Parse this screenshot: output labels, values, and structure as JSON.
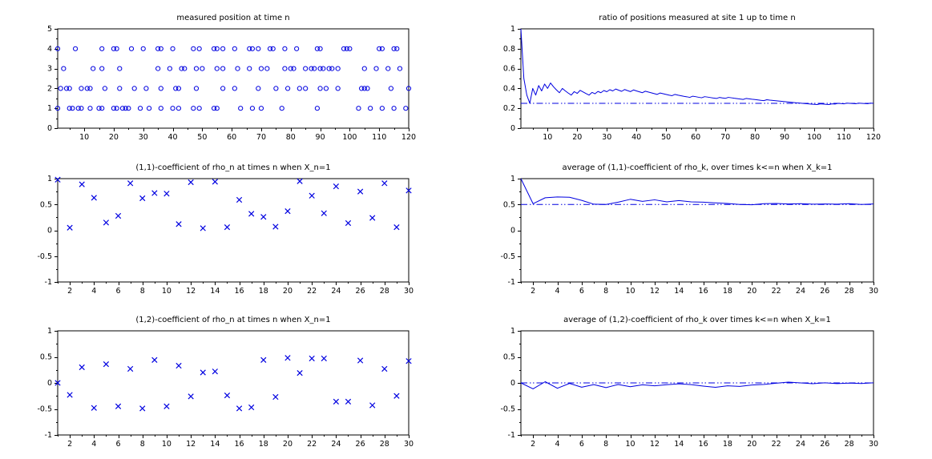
{
  "colors": {
    "series_blue": "#0000e0",
    "refline_blue": "#0000e0",
    "axis_black": "#000000",
    "background": "#ffffff",
    "text": "#000000"
  },
  "chart_data": [
    {
      "id": "measured-position",
      "type": "scatter",
      "marker": "circle",
      "title": "measured position at time n",
      "xlabel": "",
      "ylabel": "",
      "xlim": [
        1,
        120
      ],
      "ylim": [
        0,
        5
      ],
      "xticks": [
        10,
        20,
        30,
        40,
        50,
        60,
        70,
        80,
        90,
        100,
        110,
        120
      ],
      "xtick_labels": [
        "10",
        "20",
        "30",
        "40",
        "50",
        "60",
        "70",
        "80",
        "90",
        "100",
        "110",
        "120"
      ],
      "yticks": [
        0,
        1,
        2,
        3,
        4,
        5
      ],
      "ytick_labels": [
        "0",
        "1",
        "2",
        "3",
        "4",
        "5"
      ],
      "grid": false,
      "series": [
        {
          "name": "position 1",
          "y_const": 1,
          "x": [
            1,
            5,
            6,
            8,
            9,
            12,
            15,
            16,
            20,
            21,
            23,
            24,
            25,
            29,
            32,
            36,
            40,
            42,
            47,
            49,
            54,
            55,
            63,
            67,
            70,
            77,
            89,
            103,
            107,
            111,
            115,
            119
          ]
        },
        {
          "name": "position 2",
          "y_const": 2,
          "x": [
            2,
            4,
            5,
            9,
            11,
            12,
            17,
            22,
            27,
            31,
            36,
            41,
            42,
            48,
            57,
            61,
            69,
            75,
            79,
            83,
            85,
            90,
            92,
            96,
            104,
            105,
            106,
            114,
            120
          ]
        },
        {
          "name": "position 3",
          "y_const": 3,
          "x": [
            3,
            13,
            16,
            22,
            35,
            39,
            43,
            44,
            48,
            50,
            55,
            57,
            62,
            66,
            70,
            72,
            78,
            80,
            81,
            85,
            87,
            88,
            90,
            91,
            93,
            94,
            96,
            105,
            109,
            113,
            117
          ]
        },
        {
          "name": "position 4",
          "y_const": 4,
          "x": [
            1,
            7,
            16,
            20,
            21,
            26,
            30,
            35,
            36,
            40,
            47,
            49,
            54,
            55,
            57,
            61,
            66,
            67,
            69,
            73,
            74,
            78,
            82,
            89,
            90,
            98,
            99,
            100,
            110,
            111,
            115,
            116
          ]
        }
      ]
    },
    {
      "id": "ratio-site-1",
      "type": "line",
      "title": "ratio of positions measured at site 1 up to time n",
      "xlabel": "",
      "ylabel": "",
      "xlim": [
        1,
        120
      ],
      "ylim": [
        0,
        1
      ],
      "xticks": [
        10,
        20,
        30,
        40,
        50,
        60,
        70,
        80,
        90,
        100,
        110,
        120
      ],
      "xtick_labels": [
        "10",
        "20",
        "30",
        "40",
        "50",
        "60",
        "70",
        "80",
        "90",
        "100",
        "110",
        "120"
      ],
      "yticks": [
        0,
        0.2,
        0.4,
        0.6,
        0.8,
        1
      ],
      "ytick_labels": [
        "0",
        "0.2",
        "0.4",
        "0.6",
        "0.8",
        "1"
      ],
      "grid": false,
      "x_start": 1,
      "refline": 0.25,
      "y": [
        1.0,
        0.5,
        0.333,
        0.25,
        0.4,
        0.333,
        0.429,
        0.375,
        0.444,
        0.4,
        0.455,
        0.417,
        0.385,
        0.357,
        0.4,
        0.375,
        0.353,
        0.333,
        0.368,
        0.35,
        0.381,
        0.364,
        0.348,
        0.333,
        0.36,
        0.346,
        0.37,
        0.357,
        0.379,
        0.367,
        0.387,
        0.375,
        0.394,
        0.382,
        0.371,
        0.389,
        0.378,
        0.368,
        0.385,
        0.375,
        0.366,
        0.357,
        0.372,
        0.364,
        0.356,
        0.348,
        0.34,
        0.354,
        0.347,
        0.34,
        0.333,
        0.327,
        0.34,
        0.333,
        0.327,
        0.321,
        0.316,
        0.31,
        0.322,
        0.317,
        0.311,
        0.306,
        0.317,
        0.313,
        0.308,
        0.303,
        0.299,
        0.309,
        0.304,
        0.3,
        0.31,
        0.306,
        0.301,
        0.297,
        0.293,
        0.289,
        0.299,
        0.295,
        0.291,
        0.288,
        0.284,
        0.28,
        0.277,
        0.286,
        0.282,
        0.279,
        0.276,
        0.273,
        0.27,
        0.267,
        0.264,
        0.261,
        0.258,
        0.255,
        0.253,
        0.25,
        0.247,
        0.245,
        0.242,
        0.24,
        0.238,
        0.245,
        0.243,
        0.24,
        0.238,
        0.245,
        0.243,
        0.25,
        0.248,
        0.245,
        0.252,
        0.25,
        0.248,
        0.246,
        0.252,
        0.25,
        0.248,
        0.246,
        0.252,
        0.25
      ]
    },
    {
      "id": "rho11-coefficient",
      "type": "scatter",
      "marker": "x",
      "title": "(1,1)-coefficient of rho_n at times n when X_n=1",
      "xlabel": "",
      "ylabel": "",
      "xlim": [
        1,
        30
      ],
      "ylim": [
        -1,
        1
      ],
      "xticks": [
        2,
        4,
        6,
        8,
        10,
        12,
        14,
        16,
        18,
        20,
        22,
        24,
        26,
        28,
        30
      ],
      "xtick_labels": [
        "2",
        "4",
        "6",
        "8",
        "10",
        "12",
        "14",
        "16",
        "18",
        "20",
        "22",
        "24",
        "26",
        "28",
        "30"
      ],
      "yticks": [
        -1,
        -0.5,
        0,
        0.5,
        1
      ],
      "ytick_labels": [
        "-1",
        "-0.5",
        "0",
        "0.5",
        "1"
      ],
      "grid": false,
      "x_start": 1,
      "y": [
        0.98,
        0.05,
        0.89,
        0.63,
        0.15,
        0.28,
        0.91,
        0.62,
        0.72,
        0.71,
        0.12,
        0.93,
        0.04,
        0.94,
        0.06,
        0.59,
        0.32,
        0.26,
        0.07,
        0.37,
        0.95,
        0.67,
        0.33,
        0.85,
        0.14,
        0.75,
        0.24,
        0.91,
        0.06,
        0.77
      ]
    },
    {
      "id": "avg-rho11",
      "type": "line",
      "title": "average of (1,1)-coefficient of rho_k, over times k<=n when X_k=1",
      "xlabel": "",
      "ylabel": "",
      "xlim": [
        1,
        30
      ],
      "ylim": [
        -1,
        1
      ],
      "xticks": [
        2,
        4,
        6,
        8,
        10,
        12,
        14,
        16,
        18,
        20,
        22,
        24,
        26,
        28,
        30
      ],
      "xtick_labels": [
        "2",
        "4",
        "6",
        "8",
        "10",
        "12",
        "14",
        "16",
        "18",
        "20",
        "22",
        "24",
        "26",
        "28",
        "30"
      ],
      "yticks": [
        -1,
        -0.5,
        0,
        0.5,
        1
      ],
      "ytick_labels": [
        "-1",
        "-0.5",
        "0",
        "0.5",
        "1"
      ],
      "grid": false,
      "x_start": 1,
      "refline": 0.5,
      "y": [
        1.0,
        0.515,
        0.63,
        0.645,
        0.64,
        0.58,
        0.505,
        0.5,
        0.545,
        0.6,
        0.56,
        0.59,
        0.55,
        0.575,
        0.55,
        0.545,
        0.53,
        0.52,
        0.5,
        0.495,
        0.515,
        0.52,
        0.51,
        0.515,
        0.505,
        0.51,
        0.505,
        0.515,
        0.5,
        0.51
      ]
    },
    {
      "id": "rho12-coefficient",
      "type": "scatter",
      "marker": "x",
      "title": "(1,2)-coefficient of rho_n at times n when X_n=1",
      "xlabel": "",
      "ylabel": "",
      "xlim": [
        1,
        30
      ],
      "ylim": [
        -1,
        1
      ],
      "xticks": [
        2,
        4,
        6,
        8,
        10,
        12,
        14,
        16,
        18,
        20,
        22,
        24,
        26,
        28,
        30
      ],
      "xtick_labels": [
        "2",
        "4",
        "6",
        "8",
        "10",
        "12",
        "14",
        "16",
        "18",
        "20",
        "22",
        "24",
        "26",
        "28",
        "30"
      ],
      "yticks": [
        -1,
        -0.5,
        0,
        0.5,
        1
      ],
      "ytick_labels": [
        "-1",
        "-0.5",
        "0",
        "0.5",
        "1"
      ],
      "grid": false,
      "x_start": 1,
      "y": [
        0.0,
        -0.23,
        0.3,
        -0.48,
        0.36,
        -0.45,
        0.27,
        -0.49,
        0.44,
        -0.45,
        0.33,
        -0.26,
        0.2,
        0.22,
        -0.24,
        -0.49,
        -0.47,
        0.44,
        -0.27,
        0.48,
        0.19,
        0.47,
        0.47,
        -0.36,
        -0.36,
        0.43,
        -0.43,
        0.27,
        -0.25,
        0.42
      ]
    },
    {
      "id": "avg-rho12",
      "type": "line",
      "title": "average of (1,2)-coefficient of rho_k over times k<=n when X_k=1",
      "xlabel": "",
      "ylabel": "",
      "xlim": [
        1,
        30
      ],
      "ylim": [
        -1,
        1
      ],
      "xticks": [
        2,
        4,
        6,
        8,
        10,
        12,
        14,
        16,
        18,
        20,
        22,
        24,
        26,
        28,
        30
      ],
      "xtick_labels": [
        "2",
        "4",
        "6",
        "8",
        "10",
        "12",
        "14",
        "16",
        "18",
        "20",
        "22",
        "24",
        "26",
        "28",
        "30"
      ],
      "yticks": [
        -1,
        -0.5,
        0,
        0.5,
        1
      ],
      "ytick_labels": [
        "-1",
        "-0.5",
        "0",
        "0.5",
        "1"
      ],
      "grid": false,
      "x_start": 1,
      "refline": 0.0,
      "y": [
        0.0,
        -0.115,
        0.023,
        -0.103,
        -0.01,
        -0.083,
        -0.033,
        -0.09,
        -0.031,
        -0.073,
        -0.036,
        -0.055,
        -0.035,
        -0.017,
        -0.032,
        -0.061,
        -0.085,
        -0.056,
        -0.067,
        -0.04,
        -0.029,
        -0.006,
        0.015,
        -0.001,
        -0.015,
        0.002,
        -0.014,
        -0.004,
        -0.012,
        0.002
      ]
    }
  ]
}
